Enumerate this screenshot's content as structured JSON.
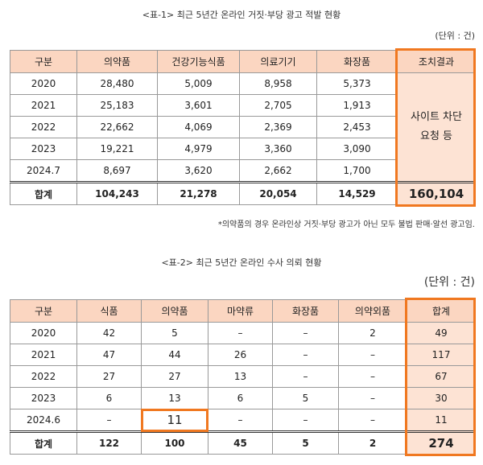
{
  "table1": {
    "title": "<표-1> 최근 5년간 온라인 거짓·부당 광고 적발 현황",
    "unit": "(단위 : 건)",
    "header": [
      "구분",
      "의약품",
      "건강기능식품",
      "의료기기",
      "화장품",
      "조치결과"
    ],
    "rows": [
      [
        "2020",
        "28,480",
        "5,009",
        "8,958",
        "5,373"
      ],
      [
        "2021",
        "25,183",
        "3,601",
        "2,705",
        "1,913"
      ],
      [
        "2022",
        "22,662",
        "4,069",
        "2,369",
        "2,453"
      ],
      [
        "2023",
        "19,221",
        "4,979",
        "3,360",
        "3,090"
      ],
      [
        "2024.7",
        "8,697",
        "3,620",
        "2,662",
        "1,700"
      ]
    ],
    "action": [
      "사이트 차단",
      "요청 등"
    ],
    "total": [
      "합계",
      "104,243",
      "21,278",
      "20,054",
      "14,529",
      "160,104"
    ],
    "note": "*의약품의 경우 온라인상 거짓·부당 광고가 아닌 모두 불법 판매·알선 광고임."
  },
  "table2": {
    "title": "<표-2> 최근 5년간 온라인 수사 의뢰 현황",
    "unit": "(단위 : 건)",
    "header": [
      "구분",
      "식품",
      "의약품",
      "마약류",
      "화장품",
      "의약외품",
      "합계"
    ],
    "rows": [
      [
        "2020",
        "42",
        "5",
        "–",
        "–",
        "2",
        "49"
      ],
      [
        "2021",
        "47",
        "44",
        "26",
        "–",
        "–",
        "117"
      ],
      [
        "2022",
        "27",
        "27",
        "13",
        "–",
        "–",
        "67"
      ],
      [
        "2023",
        "6",
        "13",
        "6",
        "5",
        "–",
        "30"
      ],
      [
        "2024.6",
        "–",
        "11",
        "–",
        "–",
        "–",
        "11"
      ]
    ],
    "total": [
      "합계",
      "122",
      "100",
      "45",
      "5",
      "2",
      "274"
    ]
  }
}
